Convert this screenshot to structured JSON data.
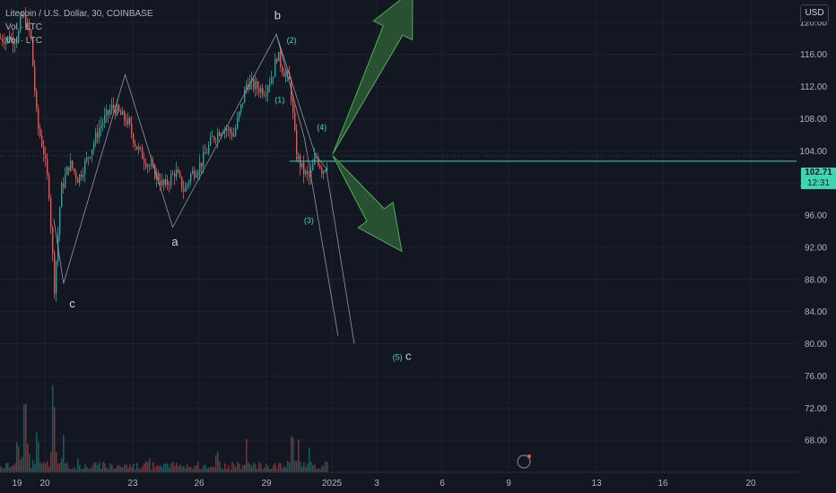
{
  "legend": {
    "title": "Litecoin / U.S. Dollar, 30, COINBASE",
    "vol1": "Vol · LTC",
    "vol2": "Vol · LTC"
  },
  "currency_button": "USD",
  "last_price": {
    "value": "102.71",
    "countdown": "12:31"
  },
  "colors": {
    "background": "#131722",
    "up": "#26a69a",
    "down": "#ef5350",
    "arrow_fill": "#2e5a35",
    "arrow_stroke": "#4caf50",
    "last_price": "#3dd6b5",
    "wave_line": "#9598a1"
  },
  "chart_data": {
    "type": "candlestick",
    "symbol": "LTCUSD",
    "ylim": [
      64,
      124
    ],
    "y_ticks": [
      "120.00",
      "116.00",
      "112.00",
      "108.00",
      "104.00",
      "100.00",
      "96.00",
      "92.00",
      "88.00",
      "84.00",
      "80.00",
      "76.00",
      "72.00",
      "68.00"
    ],
    "x_ticks": [
      "19",
      "20",
      "23",
      "26",
      "29",
      "2025",
      "3",
      "6",
      "9",
      "13",
      "16",
      "20"
    ],
    "price_path": [
      {
        "x": 0,
        "y": 118.0
      },
      {
        "x": 0.2,
        "y": 121.0
      },
      {
        "x": 0.6,
        "y": 118.5
      },
      {
        "x": 0.9,
        "y": 107.5
      },
      {
        "x": 1.2,
        "y": 104.0
      },
      {
        "x": 1.45,
        "y": 99.0
      },
      {
        "x": 1.7,
        "y": 87.0
      },
      {
        "x": 2.0,
        "y": 99.0
      },
      {
        "x": 2.4,
        "y": 102.5
      },
      {
        "x": 2.8,
        "y": 100.5
      },
      {
        "x": 3.3,
        "y": 103.5
      },
      {
        "x": 3.8,
        "y": 107.0
      },
      {
        "x": 4.4,
        "y": 109.5
      },
      {
        "x": 5.1,
        "y": 107.5
      },
      {
        "x": 5.5,
        "y": 104.5
      },
      {
        "x": 6.0,
        "y": 102.5
      },
      {
        "x": 6.4,
        "y": 101.0
      },
      {
        "x": 6.8,
        "y": 99.5
      },
      {
        "x": 7.3,
        "y": 101.5
      },
      {
        "x": 7.7,
        "y": 99.0
      },
      {
        "x": 8.0,
        "y": 101.0
      },
      {
        "x": 8.5,
        "y": 102.5
      },
      {
        "x": 9.0,
        "y": 105.5
      },
      {
        "x": 9.5,
        "y": 107.0
      },
      {
        "x": 10.0,
        "y": 106.0
      },
      {
        "x": 10.3,
        "y": 109.0
      },
      {
        "x": 10.6,
        "y": 112.5
      },
      {
        "x": 11.0,
        "y": 112.0
      },
      {
        "x": 11.4,
        "y": 111.5
      },
      {
        "x": 11.8,
        "y": 113.5
      },
      {
        "x": 12.0,
        "y": 116.0
      },
      {
        "x": 12.3,
        "y": 114.0
      },
      {
        "x": 12.6,
        "y": 112.5
      },
      {
        "x": 12.9,
        "y": 103.5
      },
      {
        "x": 13.2,
        "y": 101.5
      },
      {
        "x": 13.5,
        "y": 100.5
      },
      {
        "x": 13.8,
        "y": 103.5
      },
      {
        "x": 14.1,
        "y": 101.5
      },
      {
        "x": 14.35,
        "y": 102.7
      }
    ],
    "volume_spikes": [
      {
        "x": 0.0,
        "v": 0.3
      },
      {
        "x": 0.35,
        "v": 0.7
      },
      {
        "x": 0.9,
        "v": 0.35
      },
      {
        "x": 1.6,
        "v": 0.75
      },
      {
        "x": 1.7,
        "v": 0.55
      },
      {
        "x": 2.1,
        "v": 0.35
      },
      {
        "x": 2.8,
        "v": 0.15
      },
      {
        "x": 6.1,
        "v": 0.15
      },
      {
        "x": 9.2,
        "v": 0.18
      },
      {
        "x": 10.6,
        "v": 0.3
      },
      {
        "x": 12.7,
        "v": 0.38
      },
      {
        "x": 13.0,
        "v": 0.34
      },
      {
        "x": 13.5,
        "v": 0.22
      }
    ],
    "wave_path": [
      {
        "x": 1.7,
        "y": 95.5
      },
      {
        "x": 2.15,
        "y": 87.5
      },
      {
        "x": 5.0,
        "y": 113.5
      },
      {
        "x": 7.2,
        "y": 94.5
      },
      {
        "x": 12.0,
        "y": 118.5
      },
      {
        "x": 13.3,
        "y": 105.5
      },
      {
        "x": 14.85,
        "y": 81.0
      }
    ],
    "wave_path_alt": [
      {
        "x": 12.0,
        "y": 118.5
      },
      {
        "x": 13.8,
        "y": 103.5
      },
      {
        "x": 14.3,
        "y": 101.8
      },
      {
        "x": 15.6,
        "y": 80.0
      }
    ],
    "last_price_value": 102.71,
    "annotations": [
      {
        "text": "c",
        "x": 2.55,
        "y": 84.5,
        "style": "major"
      },
      {
        "text": "a",
        "x": 7.3,
        "y": 92.2,
        "style": "major"
      },
      {
        "text": "b",
        "x": 12.05,
        "y": 120.4,
        "style": "major"
      },
      {
        "text": "(1)",
        "x": 12.15,
        "y": 110.0,
        "style": "minor"
      },
      {
        "text": "(2)",
        "x": 12.7,
        "y": 117.4,
        "style": "minor"
      },
      {
        "text": "(3)",
        "x": 13.5,
        "y": 95.0,
        "style": "minor"
      },
      {
        "text": "(4)",
        "x": 14.1,
        "y": 106.6,
        "style": "minor"
      },
      {
        "text": "(5)",
        "x": 17.6,
        "y": 78.0,
        "style": "minor"
      },
      {
        "text": "c",
        "x": 18.1,
        "y": 78.0,
        "style": "major"
      }
    ],
    "arrows": [
      {
        "from": {
          "x": 14.6,
          "y": 103.6
        },
        "to": {
          "x": 18.3,
          "y": 124.0
        },
        "direction": "up"
      },
      {
        "from": {
          "x": 14.6,
          "y": 103.4
        },
        "to": {
          "x": 17.8,
          "y": 91.5
        },
        "direction": "down"
      }
    ],
    "price_line_start_x": 12.6,
    "grid": true
  }
}
